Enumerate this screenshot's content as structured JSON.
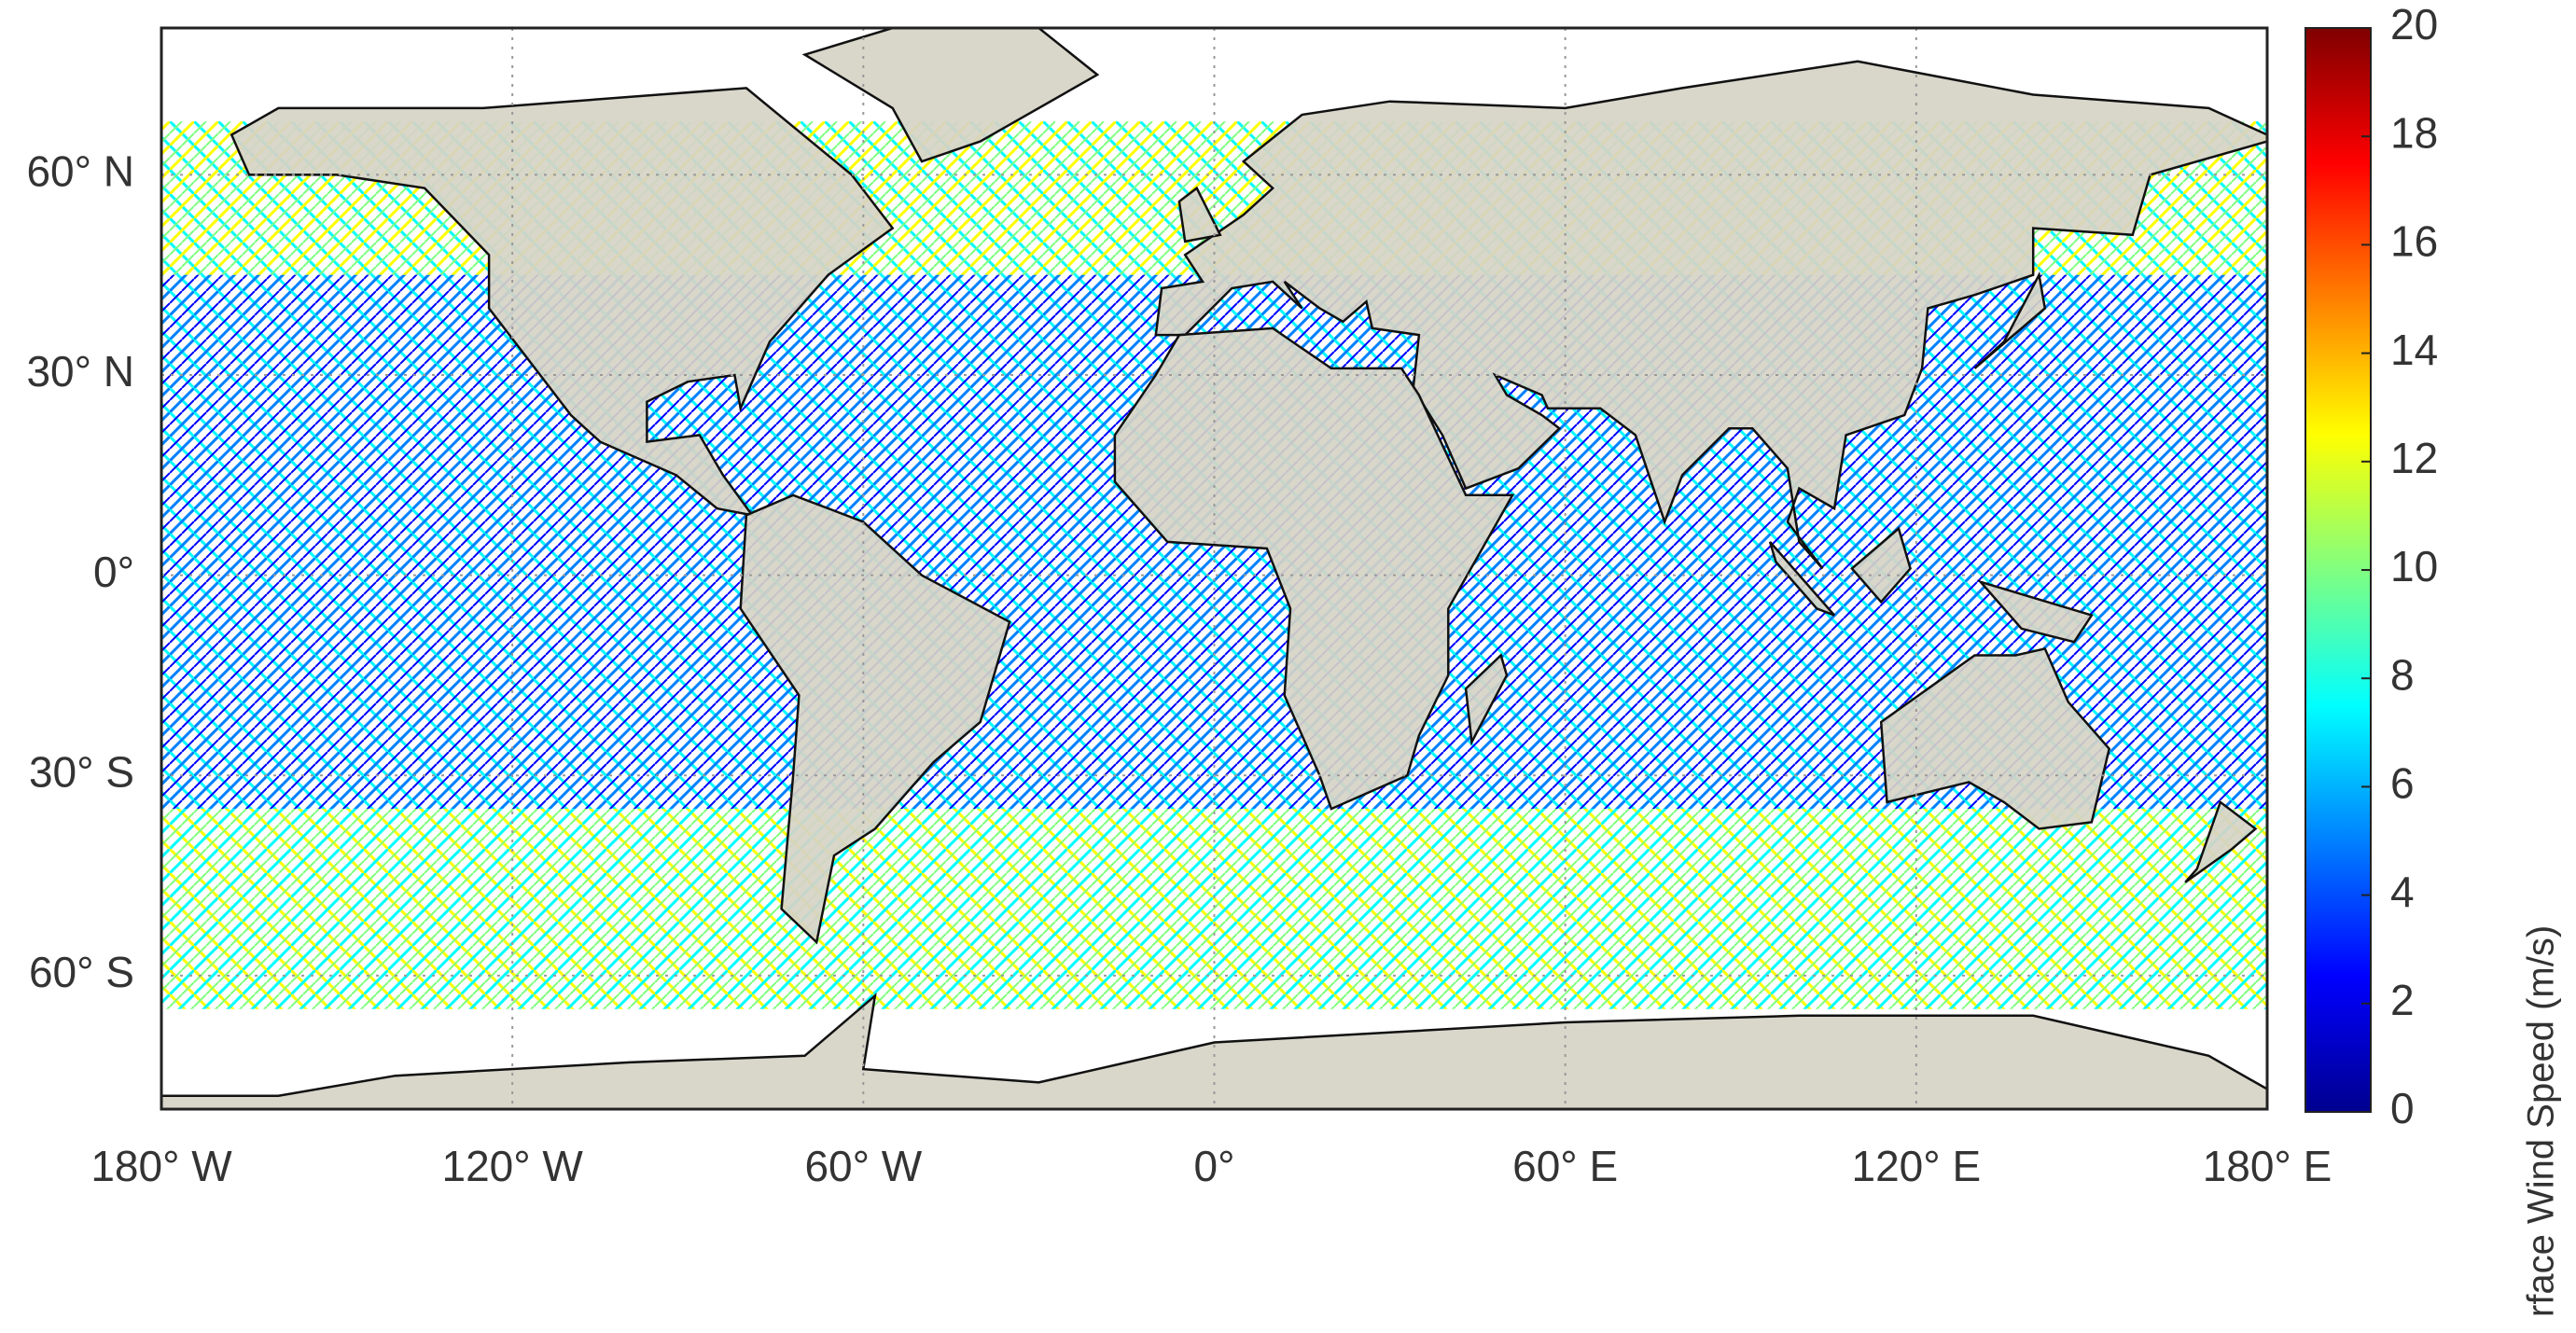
{
  "map": {
    "lonlim": [
      -180,
      180
    ],
    "latlim": [
      -80,
      82
    ],
    "lon_ticks": [
      {
        "value": -180,
        "label": "180° W"
      },
      {
        "value": -120,
        "label": "120° W"
      },
      {
        "value": -60,
        "label": "60° W"
      },
      {
        "value": 0,
        "label": "0°"
      },
      {
        "value": 60,
        "label": "60° E"
      },
      {
        "value": 120,
        "label": "120° E"
      },
      {
        "value": 180,
        "label": "180° E"
      }
    ],
    "lat_ticks": [
      {
        "value": 60,
        "label": "60° N"
      },
      {
        "value": 30,
        "label": "30° N"
      },
      {
        "value": 0,
        "label": "0°"
      },
      {
        "value": -30,
        "label": "30° S"
      },
      {
        "value": -60,
        "label": "60° S"
      }
    ],
    "grid": true
  },
  "colorbar": {
    "label": "rface Wind Speed (m/s)",
    "lim": [
      0,
      20
    ],
    "ticks": [
      0,
      2,
      4,
      6,
      8,
      10,
      12,
      14,
      16,
      18,
      20
    ],
    "colormap": [
      "#00008f",
      "#0000ff",
      "#0080ff",
      "#00ffff",
      "#80ff80",
      "#ffff00",
      "#ff8000",
      "#ff0000",
      "#800000"
    ]
  }
}
